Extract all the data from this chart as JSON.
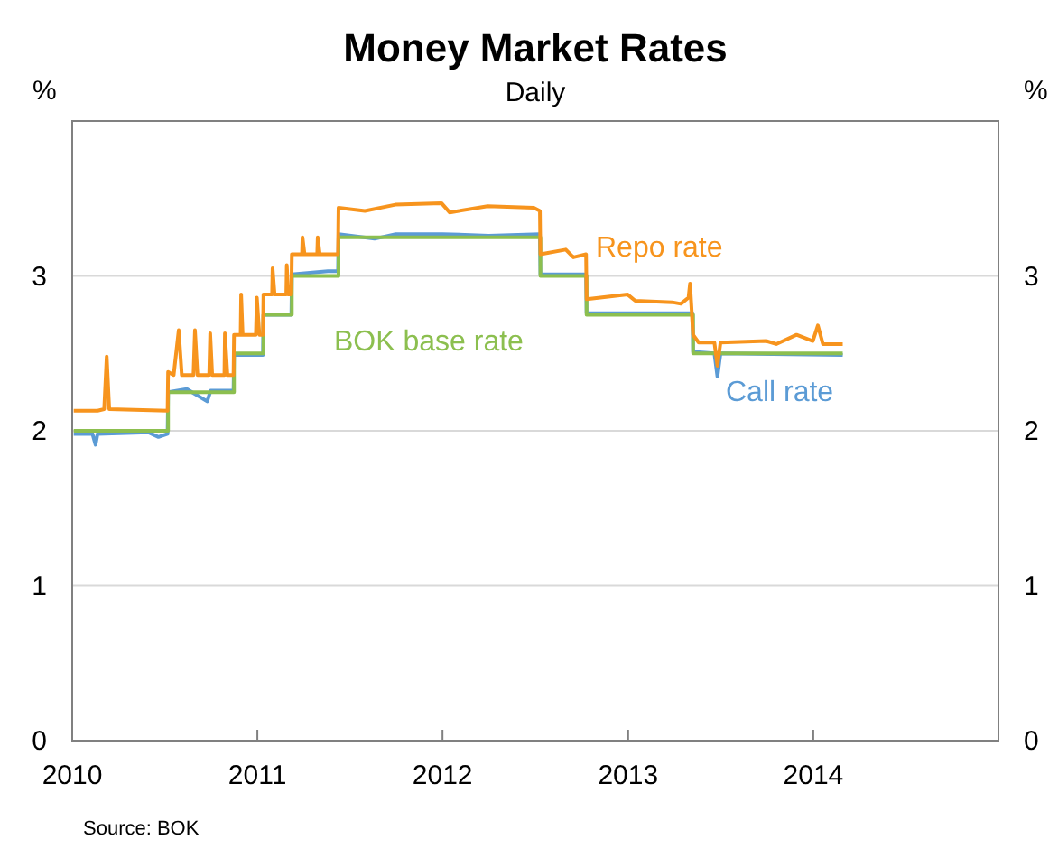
{
  "chart_data": {
    "type": "line",
    "title": "Money Market Rates",
    "subtitle": "Daily",
    "ylabel": "%",
    "y2label": "%",
    "xlim": [
      "2010-01-01",
      "2015-01-01"
    ],
    "xticks": [
      {
        "value": "2010-01-01",
        "label": "2010"
      },
      {
        "value": "2011-01-01",
        "label": "2011"
      },
      {
        "value": "2012-01-01",
        "label": "2012"
      },
      {
        "value": "2013-01-01",
        "label": "2013"
      },
      {
        "value": "2014-01-01",
        "label": "2014"
      }
    ],
    "ylim": [
      0,
      4
    ],
    "yticks": [
      0,
      1,
      2,
      3
    ],
    "y2lim": [
      0,
      4
    ],
    "y2ticks": [
      0,
      1,
      2,
      3
    ],
    "grid": "y",
    "series": [
      {
        "name": "Call rate",
        "type": "line",
        "color": "#5b9bd5",
        "x": [
          "2010-01-04",
          "2010-02-10",
          "2010-02-16",
          "2010-02-20",
          "2010-05-31",
          "2010-06-20",
          "2010-07-08",
          "2010-07-09",
          "2010-08-15",
          "2010-09-24",
          "2010-10-01",
          "2010-11-15",
          "2010-11-16",
          "2011-01-12",
          "2011-01-13",
          "2011-03-09",
          "2011-03-10",
          "2011-05-20",
          "2011-06-09",
          "2011-06-10",
          "2011-08-20",
          "2011-10-01",
          "2012-01-01",
          "2012-04-01",
          "2012-07-11",
          "2012-07-12",
          "2012-10-10",
          "2012-10-11",
          "2013-02-01",
          "2013-05-08",
          "2013-05-09",
          "2013-06-20",
          "2013-06-26",
          "2013-07-02",
          "2014-02-28"
        ],
        "values": [
          1.98,
          1.98,
          1.91,
          1.98,
          1.99,
          1.96,
          1.98,
          2.25,
          2.27,
          2.19,
          2.26,
          2.26,
          2.49,
          2.49,
          2.75,
          2.75,
          3.01,
          3.03,
          3.03,
          3.27,
          3.24,
          3.27,
          3.27,
          3.26,
          3.27,
          3.01,
          3.01,
          2.76,
          2.76,
          2.76,
          2.51,
          2.5,
          2.35,
          2.5,
          2.49
        ]
      },
      {
        "name": "BOK base rate",
        "type": "step",
        "color": "#8cbf4f",
        "x": [
          "2010-01-04",
          "2010-07-09",
          "2010-11-16",
          "2011-01-13",
          "2011-03-10",
          "2011-06-10",
          "2012-07-12",
          "2012-10-11",
          "2013-05-09",
          "2014-02-28"
        ],
        "values": [
          2,
          2.25,
          2.5,
          2.75,
          3,
          3.25,
          3,
          2.75,
          2.5,
          2.5
        ]
      },
      {
        "name": "Repo rate",
        "type": "line",
        "color": "#f7941d",
        "x": [
          "2010-01-04",
          "2010-02-20",
          "2010-03-05",
          "2010-03-10",
          "2010-03-15",
          "2010-07-08",
          "2010-07-09",
          "2010-07-20",
          "2010-07-30",
          "2010-08-05",
          "2010-08-28",
          "2010-08-31",
          "2010-09-05",
          "2010-09-28",
          "2010-09-30",
          "2010-10-04",
          "2010-10-28",
          "2010-10-29",
          "2010-11-03",
          "2010-11-15",
          "2010-11-16",
          "2010-11-29",
          "2010-11-30",
          "2010-12-03",
          "2010-12-29",
          "2010-12-31",
          "2011-01-05",
          "2011-01-12",
          "2011-01-13",
          "2011-01-30",
          "2011-01-31",
          "2011-02-04",
          "2011-02-27",
          "2011-02-28",
          "2011-03-03",
          "2011-03-09",
          "2011-03-10",
          "2011-03-30",
          "2011-03-31",
          "2011-04-04",
          "2011-04-29",
          "2011-04-30",
          "2011-05-04",
          "2011-06-09",
          "2011-06-10",
          "2011-08-01",
          "2011-09-30",
          "2011-12-30",
          "2012-01-15",
          "2012-03-30",
          "2012-06-29",
          "2012-07-11",
          "2012-07-12",
          "2012-08-31",
          "2012-09-15",
          "2012-10-10",
          "2012-10-11",
          "2012-12-31",
          "2013-01-15",
          "2013-03-29",
          "2013-04-15",
          "2013-04-30",
          "2013-05-03",
          "2013-05-09",
          "2013-05-20",
          "2013-06-20",
          "2013-06-26",
          "2013-07-02",
          "2013-09-30",
          "2013-10-20",
          "2013-11-29",
          "2013-12-31",
          "2014-01-10",
          "2014-01-20",
          "2014-02-28"
        ],
        "values": [
          2.13,
          2.13,
          2.14,
          2.48,
          2.14,
          2.13,
          2.38,
          2.36,
          2.65,
          2.36,
          2.36,
          2.65,
          2.36,
          2.36,
          2.63,
          2.36,
          2.36,
          2.63,
          2.36,
          2.36,
          2.62,
          2.62,
          2.88,
          2.62,
          2.62,
          2.86,
          2.62,
          2.62,
          2.88,
          2.88,
          3.05,
          2.88,
          2.88,
          3.07,
          2.88,
          2.88,
          3.14,
          3.14,
          3.25,
          3.14,
          3.14,
          3.25,
          3.14,
          3.14,
          3.44,
          3.42,
          3.46,
          3.47,
          3.41,
          3.45,
          3.44,
          3.42,
          3.14,
          3.17,
          3.12,
          3.14,
          2.85,
          2.88,
          2.84,
          2.83,
          2.82,
          2.86,
          2.95,
          2.62,
          2.57,
          2.57,
          2.42,
          2.57,
          2.58,
          2.56,
          2.62,
          2.58,
          2.68,
          2.56,
          2.56
        ]
      }
    ],
    "annotations": [
      "Source: BOK"
    ]
  }
}
